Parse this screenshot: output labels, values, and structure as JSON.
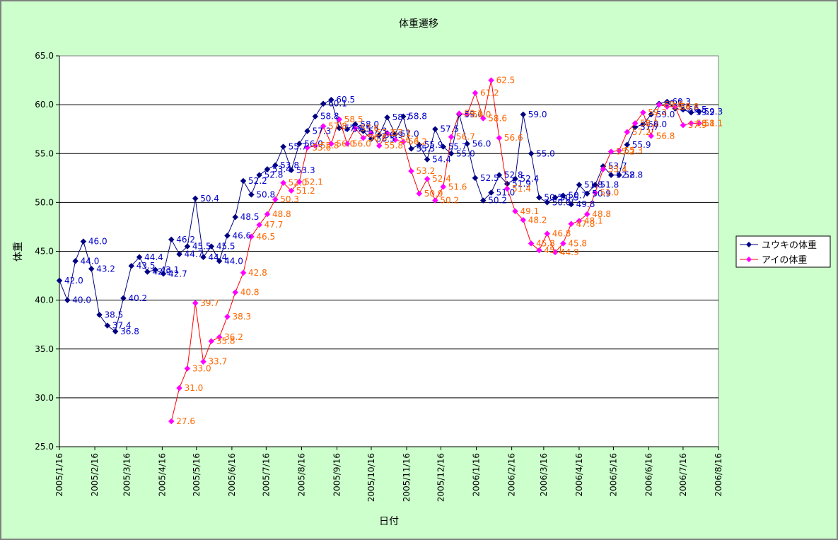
{
  "chart_data": {
    "type": "line",
    "title": "体重遷移",
    "xlabel": "日付",
    "ylabel": "体重",
    "ylim": [
      25,
      65
    ],
    "yticks": [
      "25.0",
      "30.0",
      "35.0",
      "40.0",
      "45.0",
      "50.0",
      "55.0",
      "60.0",
      "65.0"
    ],
    "x_date_range": [
      "2005-01-16",
      "2006-08-16"
    ],
    "xticks": [
      "2005/1/16",
      "2005/2/16",
      "2005/3/16",
      "2005/4/16",
      "2005/5/16",
      "2005/6/16",
      "2005/7/16",
      "2005/8/16",
      "2005/9/16",
      "2005/10/16",
      "2005/11/16",
      "2005/12/16",
      "2006/1/16",
      "2006/2/16",
      "2006/3/16",
      "2006/4/16",
      "2006/5/16",
      "2006/6/16",
      "2006/7/16",
      "2006/8/16"
    ],
    "grid": true,
    "legend_position": "right",
    "background": "#ccffcc",
    "plot_background": "#ffffff",
    "series": [
      {
        "name": "ユウキの体重",
        "color": "#000080",
        "label_color": "#0000cc",
        "x": [
          "2005-01-16",
          "2005-01-23",
          "2005-01-30",
          "2005-02-06",
          "2005-02-13",
          "2005-02-20",
          "2005-02-27",
          "2005-03-06",
          "2005-03-13",
          "2005-03-20",
          "2005-03-27",
          "2005-04-03",
          "2005-04-10",
          "2005-04-17",
          "2005-04-24",
          "2005-05-01",
          "2005-05-08",
          "2005-05-15",
          "2005-05-22",
          "2005-05-29",
          "2005-06-05",
          "2005-06-12",
          "2005-06-19",
          "2005-06-26",
          "2005-07-03",
          "2005-07-10",
          "2005-07-17",
          "2005-07-24",
          "2005-07-31",
          "2005-08-07",
          "2005-08-14",
          "2005-08-21",
          "2005-08-28",
          "2005-09-04",
          "2005-09-11",
          "2005-09-18",
          "2005-09-25",
          "2005-10-02",
          "2005-10-09",
          "2005-10-16",
          "2005-10-23",
          "2005-10-30",
          "2005-11-06",
          "2005-11-13",
          "2005-11-20",
          "2005-11-27",
          "2005-12-04",
          "2005-12-11",
          "2005-12-18",
          "2005-12-25",
          "2006-01-01",
          "2006-01-08",
          "2006-01-15",
          "2006-01-22",
          "2006-01-29",
          "2006-02-05",
          "2006-02-12",
          "2006-02-19",
          "2006-02-26",
          "2006-03-05",
          "2006-03-12",
          "2006-03-19",
          "2006-03-26",
          "2006-04-02",
          "2006-04-09",
          "2006-04-16",
          "2006-04-23",
          "2006-04-30",
          "2006-05-07",
          "2006-05-14",
          "2006-05-21",
          "2006-05-28",
          "2006-06-04",
          "2006-06-11",
          "2006-06-18",
          "2006-06-25",
          "2006-07-02",
          "2006-07-09",
          "2006-07-16",
          "2006-07-23",
          "2006-07-30"
        ],
        "values": [
          42.0,
          40.0,
          44.0,
          46.0,
          43.2,
          38.5,
          37.4,
          36.8,
          40.2,
          43.5,
          44.4,
          42.9,
          43.1,
          42.7,
          46.2,
          44.7,
          45.5,
          50.4,
          44.4,
          45.5,
          44.0,
          46.6,
          48.5,
          52.2,
          50.8,
          52.8,
          53.4,
          53.8,
          55.7,
          53.3,
          56.0,
          57.3,
          58.8,
          60.1,
          60.5,
          57.6,
          57.5,
          58.0,
          57.3,
          56.5,
          56.9,
          58.7,
          57.0,
          58.8,
          55.5,
          55.9,
          54.4,
          57.5,
          55.7,
          55.0,
          59.0,
          56.0,
          52.5,
          50.2,
          51.0,
          52.8,
          51.9,
          52.4,
          59.0,
          55.0,
          50.5,
          50.0,
          50.5,
          50.7,
          49.8,
          51.8,
          50.9,
          51.8,
          53.7,
          52.8,
          52.8,
          55.9,
          57.7,
          58.0,
          59.0,
          60.1,
          60.3,
          59.6,
          59.5,
          59.2,
          59.3
        ],
        "data_labels": [
          "42.0",
          "40.0",
          "44.0",
          "46.0",
          "43.2",
          "38.5",
          "37.4",
          "36.8",
          "40.2",
          "43.5",
          "44.4",
          "42.9",
          "43.1",
          "42.7",
          "46.2",
          "44.7",
          "45.5",
          "50.4",
          "44.4",
          "45.5",
          "44.0",
          "46.6",
          "48.5",
          "52.2",
          "50.8",
          "52.8",
          "53.4",
          "53.8",
          "55.7",
          "53.3",
          "56.0",
          "57.3",
          "58.8",
          "60.1",
          "60.5",
          "57.6",
          "57.5",
          "58.0",
          "57.3",
          "56.5",
          "56.9",
          "58.7",
          "57.0",
          "58.8",
          "55.5",
          "55.9",
          "54.4",
          "57.5",
          "55.7",
          "55.0",
          "59.0",
          "56.0",
          "52.5",
          "50.2",
          "51.0",
          "52.8",
          "51.9",
          "52.4",
          "59.0",
          "55.0",
          "50.5",
          "50.0",
          "50.5",
          "50.7",
          "49.8",
          "51.8",
          "50.9",
          "51.8",
          "53.7",
          "52.8",
          "52.8",
          "55.9",
          "57.7",
          "58.0",
          "59.0",
          "60.1",
          "60.3",
          "59.6",
          "59.5",
          "59.2",
          "59.3"
        ]
      },
      {
        "name": "アイの体重",
        "color": "#ff0000",
        "marker_color": "#ff00ff",
        "label_color": "#ff6600",
        "x": [
          "2005-04-24",
          "2005-05-01",
          "2005-05-08",
          "2005-05-15",
          "2005-05-22",
          "2005-05-29",
          "2005-06-05",
          "2005-06-12",
          "2005-06-19",
          "2005-06-26",
          "2005-07-03",
          "2005-07-10",
          "2005-07-17",
          "2005-07-24",
          "2005-07-31",
          "2005-08-07",
          "2005-08-14",
          "2005-08-21",
          "2005-08-28",
          "2005-09-04",
          "2005-09-11",
          "2005-09-18",
          "2005-09-25",
          "2005-10-02",
          "2005-10-09",
          "2005-10-16",
          "2005-10-23",
          "2005-10-30",
          "2005-11-06",
          "2005-11-13",
          "2005-11-20",
          "2005-11-27",
          "2005-12-04",
          "2005-12-11",
          "2005-12-18",
          "2005-12-25",
          "2006-01-01",
          "2006-01-08",
          "2006-01-15",
          "2006-01-22",
          "2006-01-29",
          "2006-02-05",
          "2006-02-12",
          "2006-02-19",
          "2006-02-26",
          "2006-03-05",
          "2006-03-12",
          "2006-03-19",
          "2006-03-26",
          "2006-04-02",
          "2006-04-09",
          "2006-04-16",
          "2006-04-23",
          "2006-04-30",
          "2006-05-07",
          "2006-05-14",
          "2006-05-21",
          "2006-05-28",
          "2006-06-04",
          "2006-06-11",
          "2006-06-18",
          "2006-06-25",
          "2006-07-02",
          "2006-07-09",
          "2006-07-16",
          "2006-07-23",
          "2006-07-30"
        ],
        "values": [
          27.6,
          31.0,
          33.0,
          39.7,
          33.7,
          35.8,
          36.2,
          38.3,
          40.8,
          42.8,
          46.5,
          47.7,
          48.8,
          50.3,
          52.0,
          51.2,
          52.1,
          55.6,
          55.8,
          57.8,
          56.0,
          58.5,
          56.0,
          57.6,
          56.6,
          57.1,
          55.8,
          57.1,
          56.4,
          56.2,
          53.2,
          50.9,
          52.4,
          50.2,
          51.6,
          56.7,
          59.1,
          59.0,
          61.2,
          58.6,
          62.5,
          56.6,
          51.4,
          49.1,
          48.2,
          45.8,
          45.1,
          46.8,
          44.9,
          45.8,
          47.8,
          48.1,
          48.8,
          51.0,
          53.4,
          55.2,
          55.3,
          57.2,
          58.1,
          59.2,
          56.8,
          60.0,
          59.8,
          59.8,
          57.9,
          58.1,
          58.1
        ],
        "data_labels": [
          "27.6",
          "31.0",
          "33.0",
          "39.7",
          "33.7",
          "35.8",
          "36.2",
          "38.3",
          "40.8",
          "42.8",
          "46.5",
          "47.7",
          "48.8",
          "50.3",
          "52.0",
          "51.2",
          "52.1",
          "55.6",
          "55.8",
          "57.8",
          "56.0",
          "58.5",
          "56.0",
          "57.6",
          "56.6",
          "57.1",
          "55.8",
          "57.1",
          "56.4",
          "56.2",
          "53.2",
          "50.9",
          "52.4",
          "50.2",
          "51.6",
          "56.7",
          "59.1",
          "59.0",
          "61.2",
          "58.6",
          "62.5",
          "56.6",
          "51.4",
          "49.1",
          "48.2",
          "45.8",
          "45.1",
          "46.8",
          "44.9",
          "45.8",
          "47.8",
          "48.1",
          "48.8",
          "51.0",
          "53.4",
          "55.2",
          "55.3",
          "57.2",
          "58.1",
          "59.2",
          "56.8",
          "60.0",
          "59.8",
          "59.8",
          "57.9",
          "58.1",
          "58.1"
        ]
      }
    ]
  }
}
